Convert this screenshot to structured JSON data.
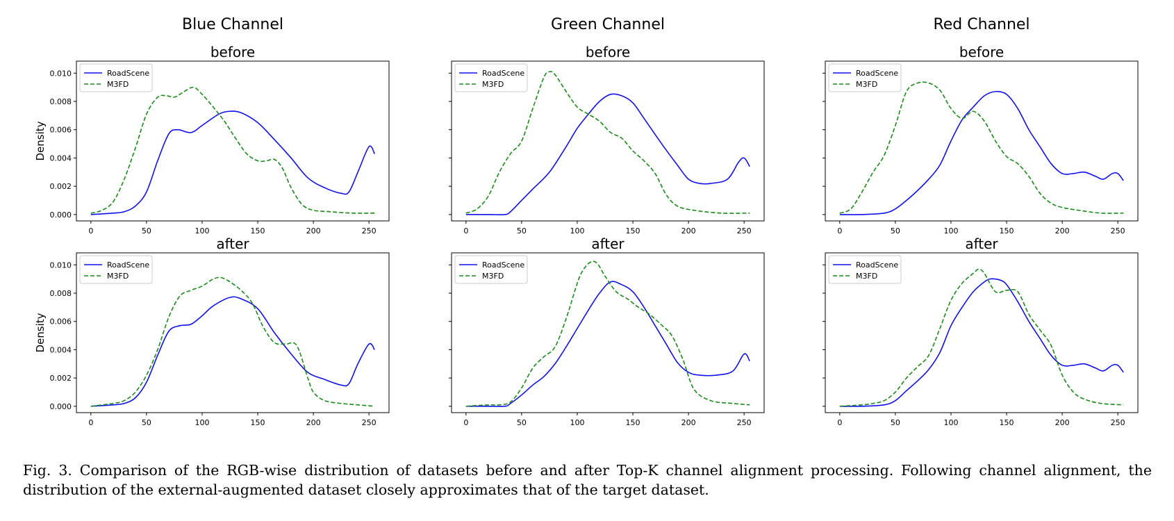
{
  "caption": "Fig. 3.  Comparison of the RGB-wise distribution of datasets before and after Top-K channel alignment processing. Following channel alignment, the distribution of the external-augmented dataset closely approximates that of the target dataset.",
  "colors": {
    "RoadScene": "#1010ee",
    "M3FD": "#1a8a1a"
  },
  "chart_data": [
    {
      "type": "line",
      "column_title": "Blue Channel",
      "title": "before",
      "ylabel": "Density",
      "xlim": [
        -13,
        268
      ],
      "ylim": [
        -0.00045,
        0.01085
      ],
      "xticks": [
        0,
        50,
        100,
        150,
        200,
        250
      ],
      "yticks": [
        0.0,
        0.002,
        0.004,
        0.006,
        0.008,
        0.01
      ],
      "ytick_labels": [
        "0.000",
        "0.002",
        "0.004",
        "0.006",
        "0.008",
        "0.010"
      ],
      "legend": "upper-left",
      "series": [
        {
          "name": "RoadScene",
          "style": "solid",
          "color": "#1010ee",
          "x": [
            0,
            20,
            30,
            40,
            50,
            60,
            70,
            78,
            90,
            100,
            115,
            125,
            135,
            150,
            165,
            180,
            195,
            210,
            225,
            232,
            240,
            250,
            255
          ],
          "y": [
            0.0,
            0.0001,
            0.0002,
            0.0006,
            0.0016,
            0.0038,
            0.0057,
            0.006,
            0.0058,
            0.0063,
            0.0071,
            0.0073,
            0.0072,
            0.0065,
            0.0053,
            0.004,
            0.0026,
            0.0019,
            0.0015,
            0.0016,
            0.003,
            0.0048,
            0.0043
          ]
        },
        {
          "name": "M3FD",
          "style": "dashed",
          "color": "#1a8a1a",
          "x": [
            0,
            10,
            20,
            30,
            40,
            50,
            60,
            68,
            75,
            82,
            92,
            100,
            110,
            120,
            130,
            140,
            150,
            158,
            165,
            172,
            180,
            190,
            200,
            215,
            235,
            255
          ],
          "y": [
            0.0001,
            0.0003,
            0.0009,
            0.0025,
            0.0047,
            0.0071,
            0.0083,
            0.0084,
            0.0083,
            0.0086,
            0.009,
            0.0085,
            0.0076,
            0.0066,
            0.0054,
            0.0043,
            0.0038,
            0.0038,
            0.0039,
            0.0033,
            0.0019,
            0.0007,
            0.0003,
            0.0002,
            0.0001,
            0.0001
          ]
        }
      ]
    },
    {
      "type": "line",
      "column_title": "Green Channel",
      "title": "before",
      "ylabel": "",
      "xlim": [
        -13,
        268
      ],
      "ylim": [
        -0.00045,
        0.01085
      ],
      "xticks": [
        0,
        50,
        100,
        150,
        200,
        250
      ],
      "yticks": [
        0.0,
        0.002,
        0.004,
        0.006,
        0.008,
        0.01
      ],
      "ytick_labels": [],
      "legend": "upper-left",
      "series": [
        {
          "name": "RoadScene",
          "style": "solid",
          "color": "#1010ee",
          "x": [
            0,
            20,
            35,
            40,
            50,
            60,
            75,
            90,
            100,
            110,
            120,
            130,
            140,
            150,
            160,
            175,
            190,
            200,
            210,
            220,
            235,
            245,
            250,
            255
          ],
          "y": [
            0.0,
            0.0,
            0.0,
            0.0002,
            0.001,
            0.0018,
            0.003,
            0.0048,
            0.0061,
            0.0071,
            0.008,
            0.0085,
            0.0084,
            0.0079,
            0.0068,
            0.0051,
            0.0035,
            0.0025,
            0.0022,
            0.0022,
            0.0025,
            0.0037,
            0.004,
            0.0034
          ]
        },
        {
          "name": "M3FD",
          "style": "dashed",
          "color": "#1a8a1a",
          "x": [
            0,
            10,
            20,
            30,
            40,
            50,
            60,
            70,
            75,
            80,
            90,
            100,
            110,
            120,
            130,
            140,
            150,
            160,
            170,
            180,
            190,
            205,
            230,
            255
          ],
          "y": [
            0.0001,
            0.0004,
            0.0013,
            0.003,
            0.0043,
            0.0052,
            0.0075,
            0.0097,
            0.0101,
            0.0099,
            0.0087,
            0.0076,
            0.0071,
            0.0066,
            0.0058,
            0.0054,
            0.0045,
            0.0038,
            0.0029,
            0.0014,
            0.0006,
            0.0003,
            0.0001,
            0.0001
          ]
        }
      ]
    },
    {
      "type": "line",
      "column_title": "Red Channel",
      "title": "before",
      "ylabel": "",
      "xlim": [
        -13,
        268
      ],
      "ylim": [
        -0.00045,
        0.01085
      ],
      "xticks": [
        0,
        50,
        100,
        150,
        200,
        250
      ],
      "yticks": [
        0.0,
        0.002,
        0.004,
        0.006,
        0.008,
        0.01
      ],
      "ytick_labels": [],
      "legend": "upper-left",
      "series": [
        {
          "name": "RoadScene",
          "style": "solid",
          "color": "#1010ee",
          "x": [
            0,
            20,
            40,
            50,
            60,
            70,
            80,
            90,
            100,
            110,
            120,
            130,
            140,
            150,
            160,
            170,
            180,
            190,
            200,
            210,
            220,
            230,
            237,
            245,
            250,
            255
          ],
          "y": [
            0.0,
            0.0,
            0.0001,
            0.0004,
            0.001,
            0.0017,
            0.0025,
            0.0035,
            0.0052,
            0.0067,
            0.0076,
            0.0084,
            0.0087,
            0.0085,
            0.0075,
            0.006,
            0.0048,
            0.0036,
            0.0029,
            0.0029,
            0.003,
            0.0027,
            0.0025,
            0.0029,
            0.0029,
            0.0024
          ]
        },
        {
          "name": "M3FD",
          "style": "dashed",
          "color": "#1a8a1a",
          "x": [
            0,
            10,
            20,
            30,
            40,
            50,
            60,
            70,
            80,
            90,
            100,
            110,
            120,
            130,
            140,
            150,
            160,
            170,
            180,
            190,
            200,
            215,
            235,
            255
          ],
          "y": [
            0.0001,
            0.0004,
            0.0016,
            0.003,
            0.0042,
            0.0063,
            0.0087,
            0.0093,
            0.0093,
            0.0088,
            0.0075,
            0.0068,
            0.0073,
            0.0066,
            0.0052,
            0.0041,
            0.0036,
            0.0027,
            0.0015,
            0.0008,
            0.0005,
            0.0003,
            0.0001,
            0.0001
          ]
        }
      ]
    },
    {
      "type": "line",
      "column_title": "",
      "title": "after",
      "ylabel": "Density",
      "xlim": [
        -13,
        268
      ],
      "ylim": [
        -0.00045,
        0.01085
      ],
      "xticks": [
        0,
        50,
        100,
        150,
        200,
        250
      ],
      "yticks": [
        0.0,
        0.002,
        0.004,
        0.006,
        0.008,
        0.01
      ],
      "ytick_labels": [
        "0.000",
        "0.002",
        "0.004",
        "0.006",
        "0.008",
        "0.010"
      ],
      "legend": "upper-left",
      "series": [
        {
          "name": "RoadScene",
          "style": "solid",
          "color": "#1010ee",
          "x": [
            0,
            20,
            30,
            40,
            50,
            60,
            70,
            80,
            90,
            100,
            110,
            125,
            135,
            150,
            165,
            180,
            195,
            210,
            225,
            232,
            240,
            250,
            255
          ],
          "y": [
            0.0,
            0.0001,
            0.0002,
            0.0006,
            0.0017,
            0.0036,
            0.0053,
            0.0057,
            0.0058,
            0.0064,
            0.0071,
            0.0077,
            0.0076,
            0.0069,
            0.0052,
            0.0037,
            0.0024,
            0.0019,
            0.0015,
            0.0016,
            0.003,
            0.0044,
            0.004
          ]
        },
        {
          "name": "M3FD",
          "style": "dashed",
          "color": "#1a8a1a",
          "x": [
            0,
            20,
            30,
            40,
            50,
            60,
            70,
            80,
            90,
            100,
            110,
            117,
            125,
            135,
            145,
            155,
            165,
            175,
            185,
            195,
            200,
            210,
            225,
            240,
            255
          ],
          "y": [
            0.0,
            0.0002,
            0.0004,
            0.001,
            0.0022,
            0.004,
            0.0063,
            0.0078,
            0.0082,
            0.0085,
            0.009,
            0.0091,
            0.0088,
            0.0082,
            0.0073,
            0.0056,
            0.0045,
            0.0044,
            0.0043,
            0.002,
            0.001,
            0.0004,
            0.0002,
            0.0001,
            0.0
          ]
        }
      ]
    },
    {
      "type": "line",
      "column_title": "",
      "title": "after",
      "ylabel": "",
      "xlim": [
        -13,
        268
      ],
      "ylim": [
        -0.00045,
        0.01085
      ],
      "xticks": [
        0,
        50,
        100,
        150,
        200,
        250
      ],
      "yticks": [
        0.0,
        0.002,
        0.004,
        0.006,
        0.008,
        0.01
      ],
      "ytick_labels": [],
      "legend": "upper-left",
      "series": [
        {
          "name": "RoadScene",
          "style": "solid",
          "color": "#1010ee",
          "x": [
            0,
            20,
            35,
            40,
            50,
            60,
            70,
            80,
            90,
            100,
            110,
            120,
            130,
            140,
            150,
            160,
            170,
            180,
            190,
            200,
            210,
            225,
            240,
            250,
            255
          ],
          "y": [
            0.0,
            0.0,
            0.0,
            0.0002,
            0.0008,
            0.0015,
            0.0021,
            0.003,
            0.0042,
            0.0055,
            0.0068,
            0.008,
            0.0088,
            0.0086,
            0.0081,
            0.007,
            0.0057,
            0.0044,
            0.0031,
            0.0024,
            0.0022,
            0.0022,
            0.0025,
            0.0037,
            0.0032
          ]
        },
        {
          "name": "M3FD",
          "style": "dashed",
          "color": "#1a8a1a",
          "x": [
            0,
            20,
            30,
            40,
            50,
            60,
            70,
            80,
            90,
            100,
            105,
            112,
            118,
            125,
            135,
            145,
            155,
            165,
            175,
            185,
            195,
            205,
            220,
            240,
            255
          ],
          "y": [
            0.0,
            0.0001,
            0.0001,
            0.0003,
            0.0013,
            0.0027,
            0.0035,
            0.0042,
            0.0062,
            0.0087,
            0.0096,
            0.0102,
            0.0101,
            0.0092,
            0.0081,
            0.0076,
            0.007,
            0.0065,
            0.0058,
            0.005,
            0.0033,
            0.0012,
            0.0004,
            0.0002,
            0.0001
          ]
        }
      ]
    },
    {
      "type": "line",
      "column_title": "",
      "title": "after",
      "ylabel": "",
      "xlim": [
        -13,
        268
      ],
      "ylim": [
        -0.00045,
        0.01085
      ],
      "xticks": [
        0,
        50,
        100,
        150,
        200,
        250
      ],
      "yticks": [
        0.0,
        0.002,
        0.004,
        0.006,
        0.008,
        0.01
      ],
      "ytick_labels": [],
      "legend": "upper-left",
      "series": [
        {
          "name": "RoadScene",
          "style": "solid",
          "color": "#1010ee",
          "x": [
            0,
            20,
            40,
            50,
            60,
            70,
            80,
            90,
            100,
            110,
            120,
            130,
            135,
            140,
            145,
            150,
            160,
            170,
            180,
            190,
            200,
            210,
            220,
            230,
            237,
            245,
            250,
            255
          ],
          "y": [
            0.0,
            0.0,
            0.0001,
            0.0004,
            0.0011,
            0.0018,
            0.0026,
            0.0038,
            0.0057,
            0.007,
            0.0081,
            0.0088,
            0.009,
            0.009,
            0.0089,
            0.0086,
            0.0074,
            0.006,
            0.0048,
            0.0036,
            0.0029,
            0.0029,
            0.003,
            0.0027,
            0.0025,
            0.0029,
            0.0029,
            0.0024
          ]
        },
        {
          "name": "M3FD",
          "style": "dashed",
          "color": "#1a8a1a",
          "x": [
            0,
            20,
            30,
            40,
            50,
            60,
            70,
            80,
            90,
            100,
            110,
            120,
            125,
            130,
            140,
            150,
            160,
            170,
            180,
            190,
            200,
            210,
            220,
            235,
            255
          ],
          "y": [
            0.0,
            0.0001,
            0.0002,
            0.0004,
            0.001,
            0.002,
            0.0028,
            0.0036,
            0.0055,
            0.0075,
            0.0087,
            0.0094,
            0.0097,
            0.0094,
            0.0081,
            0.0082,
            0.0081,
            0.0065,
            0.0054,
            0.0043,
            0.0022,
            0.001,
            0.0005,
            0.0002,
            0.0001
          ]
        }
      ]
    }
  ]
}
